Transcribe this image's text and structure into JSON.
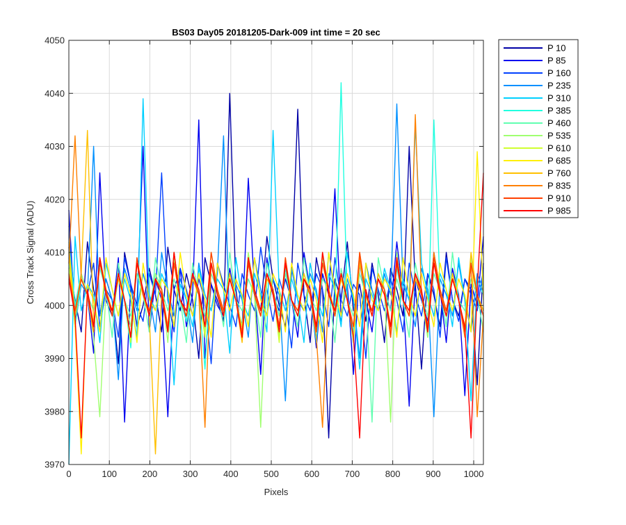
{
  "chart_data": {
    "type": "line",
    "title": "BS03 Day05 20181205-Dark-009 int time = 20 sec",
    "xlabel": "Pixels",
    "ylabel": "Cross Track Signal (ADU)",
    "xlim": [
      0,
      1024
    ],
    "ylim": [
      3970,
      4050
    ],
    "x_ticks": [
      0,
      100,
      200,
      300,
      400,
      500,
      600,
      700,
      800,
      900,
      1000
    ],
    "y_ticks": [
      3970,
      3980,
      3990,
      4000,
      4010,
      4020,
      4030,
      4040,
      4050
    ],
    "grid": true,
    "legend_position": "outside-right",
    "series": [
      {
        "name": "P 10",
        "color": "#0000A6",
        "values": [
          4008,
          4001,
          3995,
          4012,
          4003,
          3998,
          4005,
          4001,
          3989,
          4010,
          4004,
          3996,
          4000,
          4007,
          4002,
          3995,
          4011,
          4003,
          3999,
          4006,
          4001,
          3990,
          4009,
          4004,
          4001,
          3997,
          4040,
          4003,
          3994,
          4008,
          4002,
          3999,
          4013,
          4005,
          4000,
          3996,
          4006,
          4037,
          4002,
          3993,
          4009,
          4003,
          3975,
          4005,
          4001,
          4012,
          3999,
          4004,
          3997,
          4008,
          4002,
          3993,
          4007,
          4003,
          3998,
          4030,
          4004,
          3988,
          4006,
          4002,
          3996,
          4010,
          4001,
          3998,
          4005,
          4003,
          3985,
          4008
        ]
      },
      {
        "name": "P 85",
        "color": "#0000F0",
        "values": [
          4018,
          3997,
          4006,
          4002,
          3991,
          4025,
          4001,
          3998,
          4009,
          3978,
          4004,
          4000,
          4030,
          3995,
          4005,
          4001,
          3979,
          4003,
          4007,
          3996,
          4002,
          4035,
          3990,
          4004,
          4000,
          3998,
          4007,
          4001,
          3996,
          4024,
          4003,
          3987,
          4009,
          4002,
          3999,
          4005,
          4001,
          3994,
          4010,
          4003,
          3992,
          4006,
          4002,
          4022,
          3998,
          4004,
          3987,
          4008,
          4001,
          3995,
          4006,
          4003,
          3999,
          4012,
          4002,
          3981,
          4005,
          4001,
          3997,
          4010,
          4003,
          3993,
          4007,
          4002,
          3983,
          4004,
          4000,
          4013
        ]
      },
      {
        "name": "P 160",
        "color": "#0040FF",
        "values": [
          4015,
          3999,
          4005,
          4002,
          4008,
          3996,
          4003,
          4001,
          3994,
          4009,
          4004,
          4000,
          3997,
          4006,
          4002,
          4025,
          4001,
          3995,
          4007,
          4003,
          3998,
          4005,
          4001,
          3989,
          4008,
          4004,
          4000,
          3996,
          4006,
          4002,
          3999,
          4011,
          4003,
          3997,
          4005,
          4001,
          3992,
          4008,
          4002,
          3999,
          4006,
          4003,
          3996,
          4009,
          4001,
          3998,
          4004,
          4002,
          3990,
          4007,
          4003,
          3999,
          4005,
          4001,
          3995,
          4008,
          4002,
          3998,
          4006,
          4003,
          3994,
          4009,
          4001,
          3997,
          4005,
          4002,
          3999,
          4007
        ]
      },
      {
        "name": "P 235",
        "color": "#0090FF",
        "values": [
          4011,
          3996,
          4004,
          4002,
          4030,
          3998,
          4005,
          4001,
          3986,
          4007,
          4003,
          3999,
          4006,
          4002,
          3995,
          4010,
          4003,
          3998,
          4005,
          4001,
          3993,
          4008,
          4002,
          3999,
          4006,
          4032,
          3996,
          4004,
          4001,
          3994,
          4009,
          4003,
          3998,
          4005,
          4002,
          3982,
          4007,
          4001,
          3999,
          4006,
          4003,
          3995,
          4010,
          4002,
          3997,
          4005,
          4001,
          3990,
          4008,
          4003,
          3999,
          4006,
          4002,
          4038,
          4004,
          4001,
          3996,
          4007,
          4003,
          3979,
          4005,
          4002,
          3998,
          4008,
          4001,
          3995,
          4006,
          4003
        ]
      },
      {
        "name": "P 310",
        "color": "#00D0FF",
        "values": [
          3970,
          4013,
          3999,
          4004,
          4002,
          3993,
          4008,
          4003,
          3998,
          4005,
          4001,
          3994,
          4039,
          4002,
          3999,
          4006,
          4003,
          3985,
          4004,
          4001,
          3996,
          4007,
          4002,
          3999,
          4005,
          4003,
          3991,
          4009,
          4001,
          3998,
          4006,
          4002,
          3995,
          4033,
          4003,
          3999,
          4005,
          4001,
          3993,
          4008,
          4002,
          3998,
          4006,
          4003,
          3996,
          4010,
          4001,
          3988,
          4005,
          4002,
          3999,
          4007,
          4003,
          3995,
          4005,
          4001,
          4034,
          4008,
          4002,
          3998,
          4006,
          4003,
          3996,
          4009,
          4001,
          3982,
          4005,
          4002
        ]
      },
      {
        "name": "P 385",
        "color": "#20FFE0",
        "values": [
          4012,
          4000,
          4006,
          4002,
          3995,
          4009,
          4003,
          3998,
          4005,
          4001,
          3992,
          4008,
          4002,
          3999,
          4006,
          4003,
          3995,
          4010,
          4001,
          3997,
          4005,
          4002,
          3988,
          4008,
          4003,
          3999,
          4006,
          4001,
          3994,
          4009,
          4002,
          3998,
          4005,
          4003,
          3996,
          4007,
          4001,
          3999,
          4006,
          4002,
          3993,
          4008,
          4003,
          3998,
          4042,
          4001,
          3995,
          4009,
          4002,
          3999,
          4006,
          4003,
          3996,
          4007,
          4001,
          3998,
          4005,
          4002,
          3994,
          4035,
          4003,
          3999,
          4006,
          4001,
          3995,
          4008,
          4002,
          3998
        ]
      },
      {
        "name": "P 460",
        "color": "#60FFB0",
        "values": [
          4009,
          3996,
          4005,
          4002,
          3999,
          4007,
          4003,
          3994,
          4008,
          4001,
          3998,
          4006,
          4002,
          3995,
          4009,
          4003,
          3999,
          4005,
          4001,
          3993,
          4008,
          4002,
          3998,
          4006,
          4003,
          3996,
          4010,
          4001,
          3999,
          4005,
          4002,
          3994,
          4008,
          4003,
          3998,
          4006,
          4001,
          3996,
          4009,
          4002,
          3999,
          4005,
          4003,
          3993,
          4007,
          4001,
          3998,
          4006,
          4002,
          3978,
          4009,
          4003,
          3999,
          4005,
          4001,
          3994,
          4008,
          4002,
          3998,
          4006,
          4003,
          3996,
          4010,
          4001,
          3999,
          4005,
          4002,
          3995
        ]
      },
      {
        "name": "P 535",
        "color": "#A0FF70",
        "values": [
          4010,
          3998,
          4006,
          4002,
          3994,
          3979,
          4003,
          3999,
          4005,
          4001,
          3996,
          4008,
          4002,
          3998,
          4006,
          4003,
          3993,
          4009,
          4001,
          3999,
          4005,
          4002,
          3995,
          4008,
          4003,
          3998,
          4006,
          4001,
          3996,
          4010,
          4002,
          3977,
          4005,
          4003,
          3994,
          4008,
          4001,
          3998,
          4006,
          4002,
          3996,
          4009,
          4003,
          3999,
          4005,
          4001,
          3993,
          4008,
          4002,
          3998,
          4006,
          4003,
          3978,
          4010,
          4001,
          3999,
          4005,
          4002,
          3994,
          4008,
          4003,
          3998,
          4006,
          4001,
          3996,
          4009,
          4002,
          3999
        ]
      },
      {
        "name": "P 610",
        "color": "#D0FF30",
        "values": [
          4007,
          3999,
          4005,
          4002,
          3995,
          4008,
          4003,
          3998,
          4006,
          4001,
          3993,
          4009,
          4002,
          3999,
          4005,
          4003,
          3996,
          4008,
          4001,
          3998,
          4006,
          4002,
          3994,
          4010,
          4003,
          3999,
          4005,
          4001,
          3996,
          4008,
          4002,
          3998,
          4006,
          4003,
          3993,
          4009,
          4001,
          3999,
          4005,
          4002,
          3995,
          4008,
          4003,
          3998,
          4006,
          4001,
          3996,
          4010,
          4002,
          3999,
          4005,
          4003,
          3994,
          4008,
          4001,
          3998,
          4006,
          4002,
          3996,
          4009,
          4003,
          3999,
          4005,
          4001,
          3995,
          4008,
          4002,
          3998
        ]
      },
      {
        "name": "P 685",
        "color": "#FFF000",
        "values": [
          4010,
          3996,
          3972,
          4004,
          4001,
          3995,
          4009,
          4003,
          3998,
          4006,
          4002,
          3993,
          4008,
          4001,
          3999,
          4005,
          4003,
          3996,
          4010,
          4002,
          3998,
          4006,
          4001,
          3994,
          4008,
          4003,
          3999,
          4005,
          4002,
          3996,
          4009,
          4001,
          3998,
          4006,
          4003,
          3995,
          4008,
          4002,
          3999,
          4005,
          4001,
          3993,
          4010,
          4003,
          3998,
          4006,
          4002,
          3996,
          4008,
          4001,
          3999,
          4005,
          4003,
          3994,
          4009,
          4002,
          3998,
          4006,
          4001,
          3996,
          4008,
          4003,
          3999,
          4005,
          4002,
          3995,
          4029,
          4001
        ]
      },
      {
        "name": "P 760",
        "color": "#FFC000",
        "values": [
          4011,
          3998,
          4006,
          4033,
          3996,
          4009,
          4003,
          3999,
          4005,
          4001,
          3994,
          4008,
          4002,
          3998,
          3972,
          4003,
          3995,
          4010,
          4001,
          3999,
          4005,
          4002,
          3996,
          4008,
          4003,
          3998,
          4006,
          4001,
          3993,
          4009,
          4002,
          3999,
          4005,
          4003,
          3996,
          4008,
          4001,
          3998,
          4006,
          4002,
          3995,
          4010,
          4003,
          3999,
          4005,
          4001,
          3994,
          4008,
          4002,
          3998,
          4006,
          4003,
          3996,
          4009,
          4001,
          3999,
          4005,
          4002,
          3995,
          4008,
          4003,
          3998,
          4006,
          4001,
          3996,
          4010,
          4002,
          3999
        ]
      },
      {
        "name": "P 835",
        "color": "#FF8000",
        "values": [
          4008,
          4032,
          4005,
          4002,
          3995,
          4009,
          4003,
          3998,
          4006,
          4001,
          3994,
          4008,
          4002,
          3999,
          4005,
          4003,
          3996,
          4010,
          4001,
          3998,
          4006,
          4002,
          3977,
          4008,
          4003,
          3999,
          4005,
          4001,
          3995,
          4009,
          4002,
          3998,
          4006,
          4003,
          3996,
          4008,
          4001,
          3999,
          4005,
          4002,
          3994,
          3977,
          4003,
          3998,
          4006,
          4001,
          3996,
          4009,
          4002,
          3999,
          4005,
          4003,
          3995,
          4008,
          4001,
          3998,
          4036,
          4002,
          3996,
          4010,
          4003,
          3999,
          4005,
          4001,
          3994,
          4008,
          3979,
          3998
        ]
      },
      {
        "name": "P 910",
        "color": "#FF4000",
        "values": [
          4006,
          3999,
          4005,
          4002,
          3996,
          4008,
          4003,
          3998,
          4006,
          4001,
          3994,
          4009,
          4002,
          3999,
          4005,
          4003,
          3995,
          4008,
          4001,
          3998,
          4006,
          4002,
          3996,
          4010,
          4003,
          3999,
          4005,
          4001,
          3994,
          4008,
          4002,
          3998,
          4006,
          4003,
          3996,
          4009,
          4001,
          3999,
          4005,
          4002,
          3995,
          4008,
          4003,
          3998,
          4006,
          4001,
          3996,
          4010,
          4002,
          3999,
          4005,
          4003,
          3994,
          4008,
          4001,
          3998,
          4006,
          4002,
          3996,
          4009,
          4003,
          3999,
          4005,
          4001,
          3995,
          4008,
          4002,
          3998
        ]
      },
      {
        "name": "P 985",
        "color": "#FF0000",
        "values": [
          4005,
          3998,
          3975,
          4003,
          3996,
          4009,
          4002,
          3999,
          4006,
          4001,
          3994,
          4008,
          4003,
          3998,
          4005,
          4002,
          3995,
          4010,
          4001,
          3999,
          4006,
          4003,
          3996,
          4008,
          4002,
          3998,
          4005,
          4001,
          3994,
          4009,
          4003,
          3999,
          4006,
          4002,
          3995,
          4008,
          4001,
          3998,
          4005,
          4003,
          3996,
          4010,
          4002,
          3999,
          4006,
          4001,
          3994,
          3975,
          4003,
          3998,
          4005,
          4002,
          3996,
          4009,
          4001,
          3999,
          4006,
          4003,
          3995,
          4008,
          4002,
          3998,
          4005,
          4001,
          3996,
          3975,
          4003,
          4025
        ]
      }
    ]
  }
}
